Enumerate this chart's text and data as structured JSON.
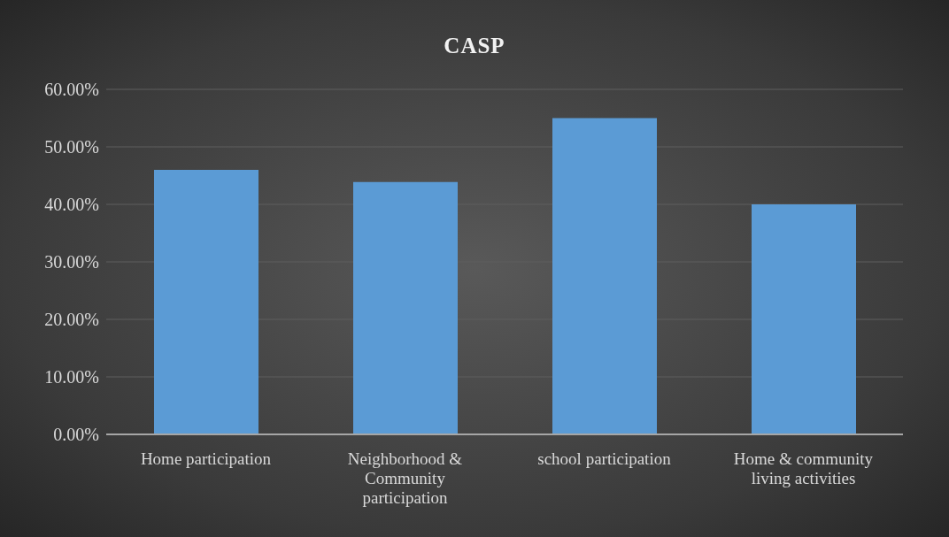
{
  "chart_data": {
    "type": "bar",
    "title": "CASP",
    "categories": [
      "Home participation",
      "Neighborhood & Community participation",
      "school participation",
      "Home & community living activities"
    ],
    "values": [
      46,
      43.9,
      55,
      40
    ],
    "color": "#5b9bd5",
    "ylim": [
      0,
      60
    ],
    "yticks": [
      {
        "value": 0,
        "label": "0.00%"
      },
      {
        "value": 10,
        "label": "10.00%"
      },
      {
        "value": 20,
        "label": "20.00%"
      },
      {
        "value": 30,
        "label": "30.00%"
      },
      {
        "value": 40,
        "label": "40.00%"
      },
      {
        "value": 50,
        "label": "50.00%"
      },
      {
        "value": 60,
        "label": "60.00%"
      }
    ],
    "grid": "y",
    "legend": false
  }
}
